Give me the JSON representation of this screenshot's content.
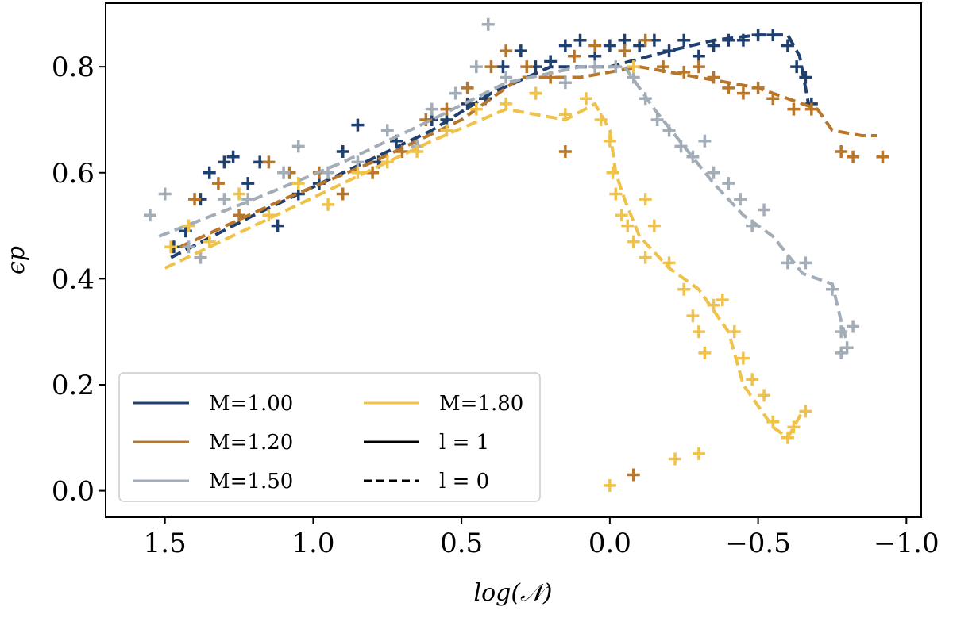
{
  "chart_data": {
    "type": "scatter",
    "title": "",
    "xlabel": "log(𝒩)",
    "ylabel": "ϵp",
    "xlim": [
      1.7,
      -1.05
    ],
    "ylim": [
      -0.05,
      0.92
    ],
    "x_ticks": [
      {
        "value": 1.5,
        "label": "1.5"
      },
      {
        "value": 1.0,
        "label": "1.0"
      },
      {
        "value": 0.5,
        "label": "0.5"
      },
      {
        "value": 0.0,
        "label": "0.0"
      },
      {
        "value": -0.5,
        "label": "−0.5"
      },
      {
        "value": -1.0,
        "label": "−1.0"
      }
    ],
    "y_ticks": [
      {
        "value": 0.0,
        "label": "0.0"
      },
      {
        "value": 0.2,
        "label": "0.2"
      },
      {
        "value": 0.4,
        "label": "0.4"
      },
      {
        "value": 0.6,
        "label": "0.6"
      },
      {
        "value": 0.8,
        "label": "0.8"
      }
    ],
    "legend": {
      "position": "lower-left",
      "entries": [
        {
          "label": "M=1.00",
          "color": "#1f3f6e",
          "style": "solid"
        },
        {
          "label": "M=1.20",
          "color": "#b8762a",
          "style": "solid"
        },
        {
          "label": "M=1.50",
          "color": "#a3adb8",
          "style": "solid"
        },
        {
          "label": "M=1.80",
          "color": "#f0c24a",
          "style": "solid"
        },
        {
          "label": "l = 1",
          "color": "#000000",
          "style": "solid"
        },
        {
          "label": "l = 0",
          "color": "#000000",
          "style": "dashed"
        }
      ]
    },
    "series": [
      {
        "name": "M=1.00",
        "color": "#1f3f6e",
        "trend": [
          [
            1.48,
            0.44
          ],
          [
            1.2,
            0.52
          ],
          [
            0.9,
            0.6
          ],
          [
            0.6,
            0.68
          ],
          [
            0.4,
            0.75
          ],
          [
            0.2,
            0.8
          ],
          [
            0.0,
            0.8
          ],
          [
            -0.2,
            0.83
          ],
          [
            -0.35,
            0.85
          ],
          [
            -0.5,
            0.86
          ],
          [
            -0.6,
            0.86
          ],
          [
            -0.64,
            0.82
          ],
          [
            -0.67,
            0.73
          ]
        ],
        "points": [
          [
            1.47,
            0.46
          ],
          [
            1.43,
            0.49
          ],
          [
            1.38,
            0.55
          ],
          [
            1.35,
            0.6
          ],
          [
            1.3,
            0.62
          ],
          [
            1.27,
            0.63
          ],
          [
            1.22,
            0.58
          ],
          [
            1.18,
            0.62
          ],
          [
            1.12,
            0.5
          ],
          [
            1.05,
            0.56
          ],
          [
            0.98,
            0.58
          ],
          [
            0.9,
            0.64
          ],
          [
            0.85,
            0.69
          ],
          [
            0.78,
            0.62
          ],
          [
            0.72,
            0.66
          ],
          [
            0.65,
            0.65
          ],
          [
            0.6,
            0.7
          ],
          [
            0.55,
            0.7
          ],
          [
            0.48,
            0.73
          ],
          [
            0.42,
            0.74
          ],
          [
            0.36,
            0.8
          ],
          [
            0.3,
            0.83
          ],
          [
            0.25,
            0.8
          ],
          [
            0.2,
            0.81
          ],
          [
            0.15,
            0.84
          ],
          [
            0.1,
            0.85
          ],
          [
            0.05,
            0.82
          ],
          [
            0.0,
            0.84
          ],
          [
            -0.05,
            0.85
          ],
          [
            -0.1,
            0.84
          ],
          [
            -0.15,
            0.85
          ],
          [
            -0.2,
            0.83
          ],
          [
            -0.25,
            0.85
          ],
          [
            -0.3,
            0.82
          ],
          [
            -0.35,
            0.84
          ],
          [
            -0.4,
            0.85
          ],
          [
            -0.45,
            0.85
          ],
          [
            -0.5,
            0.86
          ],
          [
            -0.55,
            0.86
          ],
          [
            -0.6,
            0.84
          ],
          [
            -0.63,
            0.8
          ],
          [
            -0.66,
            0.78
          ],
          [
            -0.68,
            0.73
          ]
        ]
      },
      {
        "name": "M=1.20",
        "color": "#b8762a",
        "trend": [
          [
            1.45,
            0.46
          ],
          [
            1.1,
            0.55
          ],
          [
            0.8,
            0.62
          ],
          [
            0.5,
            0.7
          ],
          [
            0.3,
            0.78
          ],
          [
            0.1,
            0.78
          ],
          [
            -0.1,
            0.8
          ],
          [
            -0.3,
            0.78
          ],
          [
            -0.5,
            0.76
          ],
          [
            -0.7,
            0.72
          ],
          [
            -0.75,
            0.68
          ],
          [
            -0.85,
            0.67
          ],
          [
            -0.9,
            0.67
          ]
        ],
        "points": [
          [
            1.4,
            0.55
          ],
          [
            1.32,
            0.58
          ],
          [
            1.25,
            0.52
          ],
          [
            1.15,
            0.62
          ],
          [
            1.08,
            0.6
          ],
          [
            0.98,
            0.6
          ],
          [
            0.9,
            0.56
          ],
          [
            0.8,
            0.6
          ],
          [
            0.7,
            0.64
          ],
          [
            0.62,
            0.7
          ],
          [
            0.55,
            0.72
          ],
          [
            0.48,
            0.76
          ],
          [
            0.4,
            0.8
          ],
          [
            0.35,
            0.83
          ],
          [
            0.28,
            0.8
          ],
          [
            0.2,
            0.78
          ],
          [
            0.12,
            0.82
          ],
          [
            0.05,
            0.84
          ],
          [
            -0.05,
            0.83
          ],
          [
            -0.12,
            0.85
          ],
          [
            -0.18,
            0.8
          ],
          [
            -0.25,
            0.79
          ],
          [
            -0.3,
            0.8
          ],
          [
            -0.35,
            0.78
          ],
          [
            -0.4,
            0.76
          ],
          [
            -0.45,
            0.75
          ],
          [
            -0.5,
            0.76
          ],
          [
            -0.55,
            0.74
          ],
          [
            -0.62,
            0.72
          ],
          [
            -0.68,
            0.72
          ],
          [
            -0.78,
            0.64
          ],
          [
            -0.82,
            0.63
          ],
          [
            -0.92,
            0.63
          ],
          [
            0.15,
            0.64
          ],
          [
            -0.08,
            0.03
          ]
        ]
      },
      {
        "name": "M=1.50",
        "color": "#a3adb8",
        "trend": [
          [
            1.52,
            0.48
          ],
          [
            1.2,
            0.55
          ],
          [
            0.9,
            0.62
          ],
          [
            0.6,
            0.7
          ],
          [
            0.35,
            0.77
          ],
          [
            0.1,
            0.8
          ],
          [
            -0.05,
            0.8
          ],
          [
            -0.15,
            0.72
          ],
          [
            -0.25,
            0.65
          ],
          [
            -0.35,
            0.58
          ],
          [
            -0.45,
            0.52
          ],
          [
            -0.55,
            0.48
          ],
          [
            -0.65,
            0.41
          ],
          [
            -0.75,
            0.39
          ],
          [
            -0.78,
            0.32
          ],
          [
            -0.8,
            0.28
          ]
        ],
        "points": [
          [
            1.55,
            0.52
          ],
          [
            1.5,
            0.56
          ],
          [
            1.42,
            0.46
          ],
          [
            1.38,
            0.44
          ],
          [
            1.3,
            0.55
          ],
          [
            1.22,
            0.55
          ],
          [
            1.1,
            0.6
          ],
          [
            1.05,
            0.65
          ],
          [
            0.95,
            0.6
          ],
          [
            0.85,
            0.62
          ],
          [
            0.75,
            0.68
          ],
          [
            0.65,
            0.65
          ],
          [
            0.6,
            0.72
          ],
          [
            0.52,
            0.75
          ],
          [
            0.45,
            0.8
          ],
          [
            0.41,
            0.88
          ],
          [
            0.35,
            0.78
          ],
          [
            0.25,
            0.75
          ],
          [
            0.15,
            0.77
          ],
          [
            0.05,
            0.8
          ],
          [
            -0.02,
            0.8
          ],
          [
            -0.08,
            0.78
          ],
          [
            -0.12,
            0.74
          ],
          [
            -0.16,
            0.7
          ],
          [
            -0.2,
            0.68
          ],
          [
            -0.24,
            0.65
          ],
          [
            -0.28,
            0.63
          ],
          [
            -0.32,
            0.66
          ],
          [
            -0.35,
            0.6
          ],
          [
            -0.4,
            0.58
          ],
          [
            -0.44,
            0.55
          ],
          [
            -0.48,
            0.5
          ],
          [
            -0.52,
            0.53
          ],
          [
            -0.6,
            0.43
          ],
          [
            -0.66,
            0.43
          ],
          [
            -0.75,
            0.38
          ],
          [
            -0.78,
            0.3
          ],
          [
            -0.8,
            0.27
          ],
          [
            -0.82,
            0.31
          ],
          [
            -0.78,
            0.26
          ]
        ]
      },
      {
        "name": "M=1.80",
        "color": "#f0c24a",
        "trend": [
          [
            1.5,
            0.42
          ],
          [
            1.2,
            0.5
          ],
          [
            0.9,
            0.58
          ],
          [
            0.6,
            0.66
          ],
          [
            0.35,
            0.72
          ],
          [
            0.15,
            0.7
          ],
          [
            0.05,
            0.73
          ],
          [
            0.0,
            0.68
          ],
          [
            -0.02,
            0.6
          ],
          [
            -0.05,
            0.55
          ],
          [
            -0.1,
            0.48
          ],
          [
            -0.2,
            0.42
          ],
          [
            -0.3,
            0.38
          ],
          [
            -0.4,
            0.3
          ],
          [
            -0.45,
            0.2
          ],
          [
            -0.5,
            0.16
          ],
          [
            -0.55,
            0.12
          ],
          [
            -0.6,
            0.1
          ],
          [
            -0.65,
            0.15
          ]
        ],
        "points": [
          [
            1.48,
            0.46
          ],
          [
            1.42,
            0.5
          ],
          [
            1.35,
            0.47
          ],
          [
            1.25,
            0.56
          ],
          [
            1.15,
            0.52
          ],
          [
            1.05,
            0.58
          ],
          [
            0.95,
            0.54
          ],
          [
            0.85,
            0.6
          ],
          [
            0.75,
            0.62
          ],
          [
            0.65,
            0.64
          ],
          [
            0.55,
            0.68
          ],
          [
            0.45,
            0.72
          ],
          [
            0.35,
            0.73
          ],
          [
            0.25,
            0.75
          ],
          [
            0.15,
            0.71
          ],
          [
            0.08,
            0.74
          ],
          [
            0.03,
            0.7
          ],
          [
            0.0,
            0.66
          ],
          [
            -0.01,
            0.6
          ],
          [
            -0.02,
            0.56
          ],
          [
            -0.04,
            0.52
          ],
          [
            -0.06,
            0.5
          ],
          [
            -0.08,
            0.47
          ],
          [
            -0.12,
            0.44
          ],
          [
            -0.15,
            0.5
          ],
          [
            -0.2,
            0.43
          ],
          [
            -0.25,
            0.38
          ],
          [
            -0.28,
            0.33
          ],
          [
            -0.3,
            0.3
          ],
          [
            -0.32,
            0.26
          ],
          [
            -0.35,
            0.35
          ],
          [
            -0.38,
            0.36
          ],
          [
            -0.42,
            0.3
          ],
          [
            -0.45,
            0.25
          ],
          [
            -0.48,
            0.21
          ],
          [
            -0.52,
            0.18
          ],
          [
            -0.55,
            0.13
          ],
          [
            -0.6,
            0.1
          ],
          [
            -0.62,
            0.12
          ],
          [
            -0.66,
            0.15
          ],
          [
            -0.22,
            0.06
          ],
          [
            -0.3,
            0.07
          ],
          [
            0.0,
            0.01
          ],
          [
            -0.12,
            0.55
          ],
          [
            -0.08,
            0.8
          ]
        ]
      }
    ]
  }
}
